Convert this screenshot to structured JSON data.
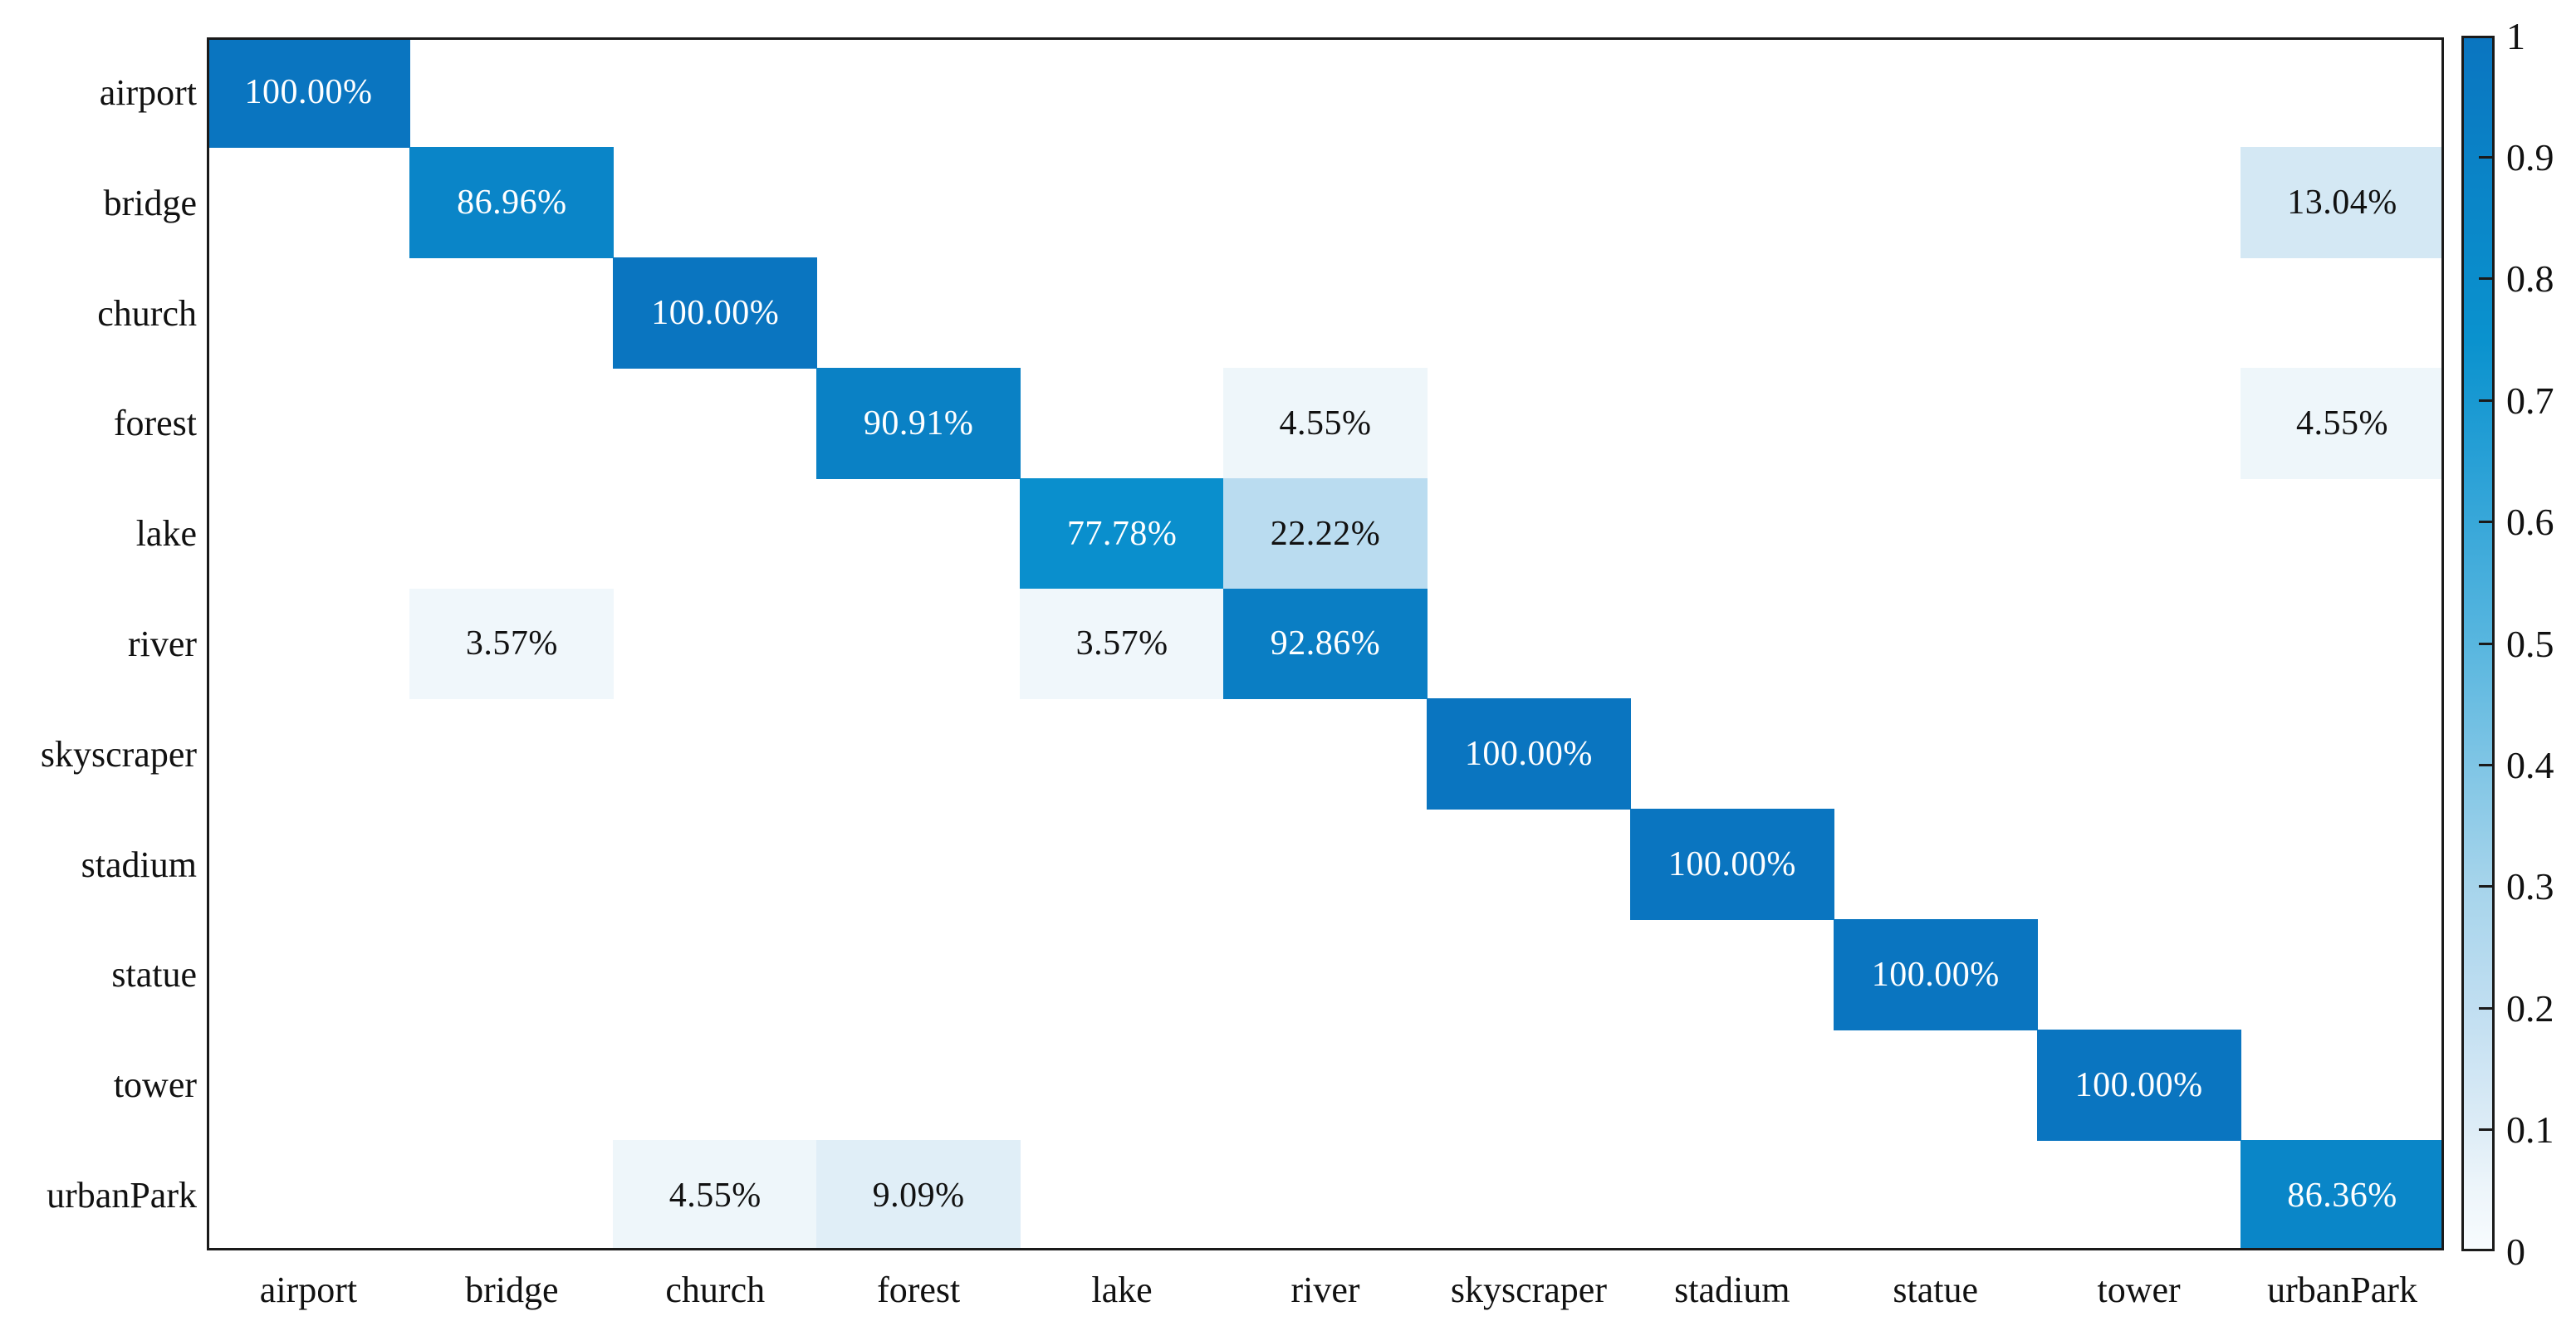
{
  "figure": {
    "background_color": "#ffffff",
    "title": ""
  },
  "chart_data": {
    "type": "heatmap",
    "subtype": "confusion-matrix",
    "title": "",
    "xlabel": "",
    "ylabel": "",
    "grid": false,
    "categories": [
      "airport",
      "bridge",
      "church",
      "forest",
      "lake",
      "river",
      "skyscraper",
      "stadium",
      "statue",
      "tower",
      "urbanPark"
    ],
    "matrix_percent": [
      [
        100.0,
        0,
        0,
        0,
        0,
        0,
        0,
        0,
        0,
        0,
        0
      ],
      [
        0,
        86.96,
        0,
        0,
        0,
        0,
        0,
        0,
        0,
        0,
        13.04
      ],
      [
        0,
        0,
        100.0,
        0,
        0,
        0,
        0,
        0,
        0,
        0,
        0
      ],
      [
        0,
        0,
        0,
        90.91,
        0,
        4.55,
        0,
        0,
        0,
        0,
        4.55
      ],
      [
        0,
        0,
        0,
        0,
        77.78,
        22.22,
        0,
        0,
        0,
        0,
        0
      ],
      [
        0,
        3.57,
        0,
        0,
        3.57,
        92.86,
        0,
        0,
        0,
        0,
        0
      ],
      [
        0,
        0,
        0,
        0,
        0,
        0,
        100.0,
        0,
        0,
        0,
        0
      ],
      [
        0,
        0,
        0,
        0,
        0,
        0,
        0,
        100.0,
        0,
        0,
        0
      ],
      [
        0,
        0,
        0,
        0,
        0,
        0,
        0,
        0,
        100.0,
        0,
        0
      ],
      [
        0,
        0,
        0,
        0,
        0,
        0,
        0,
        0,
        0,
        100.0,
        0
      ],
      [
        0,
        0,
        4.55,
        9.09,
        0,
        0,
        0,
        0,
        0,
        0,
        86.36
      ]
    ],
    "value_label_format": "percent-two-decimals",
    "cell_label_examples": [
      "100.00%",
      "86.96%",
      "13.04%",
      "90.91%",
      "4.55%",
      "77.78%",
      "22.22%",
      "3.57%",
      "92.86%",
      "9.09%",
      "86.36%"
    ],
    "colorbar": {
      "position": "right",
      "min": 0,
      "max": 1,
      "tick_values": [
        1,
        0.9,
        0.8,
        0.7,
        0.6,
        0.5,
        0.4,
        0.3,
        0.2,
        0.1,
        0
      ],
      "tick_labels": [
        "1",
        "0.9",
        "0.8",
        "0.7",
        "0.6",
        "0.5",
        "0.4",
        "0.3",
        "0.2",
        "0.1",
        "0"
      ]
    },
    "colormap_stops": [
      [
        0.0,
        "#f7fbfe"
      ],
      [
        0.05,
        "#edf5fa"
      ],
      [
        0.1,
        "#ddecf6"
      ],
      [
        0.2,
        "#c0def1"
      ],
      [
        0.3,
        "#a6d4eb"
      ],
      [
        0.4,
        "#7fc5e5"
      ],
      [
        0.5,
        "#58b6df"
      ],
      [
        0.65,
        "#28a0d6"
      ],
      [
        0.75,
        "#0a92ce"
      ],
      [
        0.9,
        "#0a82c6"
      ],
      [
        1.0,
        "#0a75c0"
      ]
    ],
    "colors": {
      "cell_text_dark_bg": "#ffffff",
      "cell_text_light_bg": "#111111",
      "axis_line": "#1a1a1a",
      "axis_text": "#111111",
      "text_color_threshold": 0.5
    }
  }
}
